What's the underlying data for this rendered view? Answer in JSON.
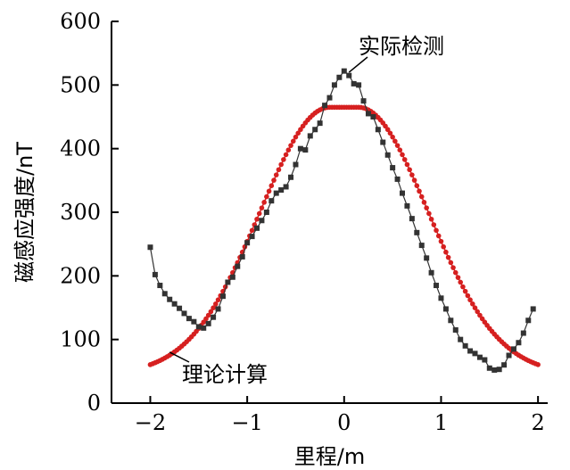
{
  "chart_data": {
    "type": "line",
    "xlabel": "里程/m",
    "ylabel": "磁感应强度/nT",
    "xlim": [
      -2.4,
      2.1
    ],
    "ylim": [
      0,
      600
    ],
    "xticks": [
      -2,
      -1,
      0,
      1,
      2
    ],
    "yticks": [
      0,
      100,
      200,
      300,
      400,
      500,
      600
    ],
    "xtick_labels": [
      "−2",
      "−1",
      "0",
      "1",
      "2"
    ],
    "ytick_labels": [
      "0",
      "100",
      "200",
      "300",
      "400",
      "500",
      "600"
    ],
    "grid": false,
    "colors": {
      "measured": "#333333",
      "theory": "#d62020"
    },
    "annotations": [
      {
        "text": "实际检测",
        "series": "measured",
        "at_x": 0.05,
        "at_y": 520
      },
      {
        "text": "理论计算",
        "series": "theory",
        "at_x": -1.8,
        "at_y": 80
      }
    ],
    "series": [
      {
        "key": "measured",
        "marker": "square",
        "x": [
          -2.0,
          -1.95,
          -1.9,
          -1.85,
          -1.8,
          -1.75,
          -1.7,
          -1.65,
          -1.6,
          -1.55,
          -1.5,
          -1.45,
          -1.4,
          -1.35,
          -1.3,
          -1.25,
          -1.2,
          -1.15,
          -1.1,
          -1.05,
          -1.0,
          -0.95,
          -0.9,
          -0.85,
          -0.8,
          -0.75,
          -0.7,
          -0.65,
          -0.6,
          -0.55,
          -0.5,
          -0.45,
          -0.4,
          -0.35,
          -0.3,
          -0.25,
          -0.2,
          -0.15,
          -0.1,
          -0.05,
          0.0,
          0.05,
          0.1,
          0.15,
          0.2,
          0.25,
          0.3,
          0.35,
          0.4,
          0.45,
          0.5,
          0.55,
          0.6,
          0.65,
          0.7,
          0.75,
          0.8,
          0.85,
          0.9,
          0.95,
          1.0,
          1.05,
          1.1,
          1.15,
          1.2,
          1.25,
          1.3,
          1.35,
          1.4,
          1.45,
          1.5,
          1.55,
          1.6,
          1.65,
          1.7,
          1.75,
          1.8,
          1.85,
          1.9,
          1.95
        ],
        "values": [
          245,
          202,
          185,
          172,
          163,
          156,
          149,
          141,
          133,
          128,
          120,
          118,
          125,
          135,
          148,
          168,
          190,
          198,
          215,
          230,
          252,
          262,
          275,
          287,
          300,
          318,
          330,
          335,
          340,
          355,
          375,
          400,
          398,
          420,
          430,
          440,
          468,
          480,
          500,
          512,
          522,
          515,
          502,
          500,
          475,
          455,
          450,
          430,
          410,
          390,
          370,
          352,
          330,
          310,
          290,
          268,
          248,
          228,
          205,
          185,
          165,
          148,
          130,
          115,
          100,
          90,
          82,
          78,
          72,
          68,
          55,
          52,
          53,
          60,
          75,
          85,
          95,
          110,
          130,
          148
        ]
      },
      {
        "key": "theory",
        "marker": "circle",
        "model": "gaussian",
        "peak": 465,
        "base": 45,
        "sigma": 0.72,
        "flat_top_halfwidth": 0.15,
        "x_start": -2.0,
        "x_end": 2.0,
        "x_step": 0.025
      }
    ]
  }
}
